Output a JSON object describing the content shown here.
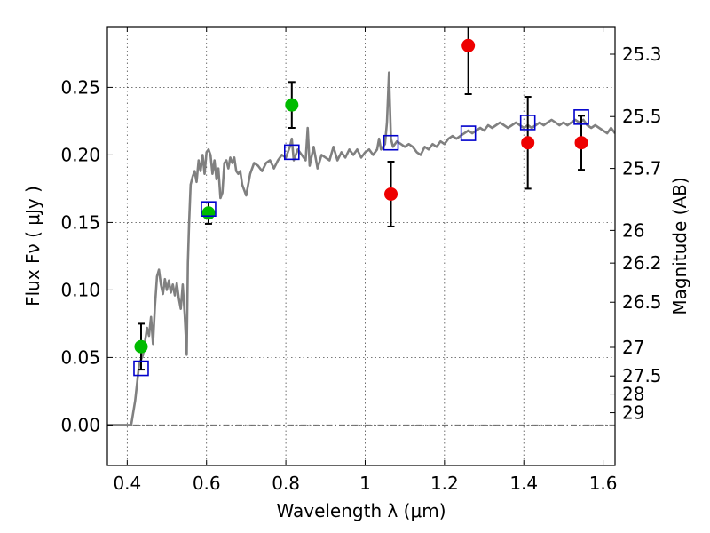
{
  "chart_data": {
    "type": "scatter",
    "xlabel": "Wavelength  λ (μm)",
    "ylabel": "Flux  Fν  ( μJy )",
    "y2label": "Magnitude (AB)",
    "xlim": [
      0.35,
      1.63
    ],
    "ylim": [
      -0.03,
      0.295
    ],
    "grid": true,
    "xticks": [
      {
        "value": 0.4,
        "label": "0.4"
      },
      {
        "value": 0.6,
        "label": "0.6"
      },
      {
        "value": 0.8,
        "label": "0.8"
      },
      {
        "value": 1.0,
        "label": "1"
      },
      {
        "value": 1.2,
        "label": "1.2"
      },
      {
        "value": 1.4,
        "label": "1.4"
      },
      {
        "value": 1.6,
        "label": "1.6"
      }
    ],
    "yticks": [
      {
        "value": 0.0,
        "label": "0.00"
      },
      {
        "value": 0.05,
        "label": "0.05"
      },
      {
        "value": 0.1,
        "label": "0.10"
      },
      {
        "value": 0.15,
        "label": "0.15"
      },
      {
        "value": 0.2,
        "label": "0.20"
      },
      {
        "value": 0.25,
        "label": "0.25"
      }
    ],
    "y2ticks": [
      {
        "label": "25.3",
        "flux": 0.2746
      },
      {
        "label": "25.5",
        "flux": 0.2284
      },
      {
        "label": "25.7",
        "flux": 0.19
      },
      {
        "label": "26",
        "flux": 0.1441
      },
      {
        "label": "26.2",
        "flux": 0.1199
      },
      {
        "label": "26.5",
        "flux": 0.0909
      },
      {
        "label": "27",
        "flux": 0.0575
      },
      {
        "label": "27.5",
        "flux": 0.0363
      },
      {
        "label": "28",
        "flux": 0.0229
      },
      {
        "label": "29",
        "flux": 0.0091
      }
    ],
    "model_spectrum": {
      "color": "#808080",
      "points": [
        [
          0.35,
          0.0
        ],
        [
          0.41,
          0.0
        ],
        [
          0.42,
          0.018
        ],
        [
          0.43,
          0.045
        ],
        [
          0.44,
          0.052
        ],
        [
          0.45,
          0.072
        ],
        [
          0.455,
          0.066
        ],
        [
          0.46,
          0.08
        ],
        [
          0.465,
          0.06
        ],
        [
          0.47,
          0.088
        ],
        [
          0.475,
          0.11
        ],
        [
          0.48,
          0.115
        ],
        [
          0.485,
          0.104
        ],
        [
          0.49,
          0.097
        ],
        [
          0.495,
          0.108
        ],
        [
          0.5,
          0.1
        ],
        [
          0.505,
          0.107
        ],
        [
          0.51,
          0.098
        ],
        [
          0.515,
          0.104
        ],
        [
          0.52,
          0.096
        ],
        [
          0.525,
          0.105
        ],
        [
          0.53,
          0.094
        ],
        [
          0.535,
          0.086
        ],
        [
          0.54,
          0.104
        ],
        [
          0.545,
          0.082
        ],
        [
          0.55,
          0.052
        ],
        [
          0.553,
          0.12
        ],
        [
          0.556,
          0.15
        ],
        [
          0.56,
          0.178
        ],
        [
          0.565,
          0.184
        ],
        [
          0.57,
          0.188
        ],
        [
          0.575,
          0.18
        ],
        [
          0.58,
          0.196
        ],
        [
          0.585,
          0.188
        ],
        [
          0.59,
          0.2
        ],
        [
          0.595,
          0.186
        ],
        [
          0.6,
          0.202
        ],
        [
          0.605,
          0.204
        ],
        [
          0.61,
          0.2
        ],
        [
          0.615,
          0.186
        ],
        [
          0.62,
          0.196
        ],
        [
          0.625,
          0.182
        ],
        [
          0.63,
          0.19
        ],
        [
          0.635,
          0.168
        ],
        [
          0.64,
          0.172
        ],
        [
          0.645,
          0.194
        ],
        [
          0.65,
          0.196
        ],
        [
          0.655,
          0.19
        ],
        [
          0.66,
          0.198
        ],
        [
          0.665,
          0.194
        ],
        [
          0.67,
          0.198
        ],
        [
          0.675,
          0.188
        ],
        [
          0.68,
          0.186
        ],
        [
          0.685,
          0.188
        ],
        [
          0.69,
          0.178
        ],
        [
          0.7,
          0.17
        ],
        [
          0.71,
          0.186
        ],
        [
          0.72,
          0.194
        ],
        [
          0.73,
          0.192
        ],
        [
          0.74,
          0.188
        ],
        [
          0.75,
          0.194
        ],
        [
          0.76,
          0.196
        ],
        [
          0.77,
          0.19
        ],
        [
          0.78,
          0.196
        ],
        [
          0.79,
          0.2
        ],
        [
          0.8,
          0.198
        ],
        [
          0.81,
          0.206
        ],
        [
          0.815,
          0.212
        ],
        [
          0.82,
          0.196
        ],
        [
          0.83,
          0.204
        ],
        [
          0.84,
          0.2
        ],
        [
          0.85,
          0.196
        ],
        [
          0.855,
          0.22
        ],
        [
          0.86,
          0.192
        ],
        [
          0.87,
          0.206
        ],
        [
          0.88,
          0.19
        ],
        [
          0.89,
          0.2
        ],
        [
          0.9,
          0.198
        ],
        [
          0.91,
          0.196
        ],
        [
          0.92,
          0.206
        ],
        [
          0.93,
          0.196
        ],
        [
          0.94,
          0.202
        ],
        [
          0.95,
          0.198
        ],
        [
          0.96,
          0.204
        ],
        [
          0.97,
          0.2
        ],
        [
          0.98,
          0.204
        ],
        [
          0.99,
          0.198
        ],
        [
          1.0,
          0.202
        ],
        [
          1.01,
          0.204
        ],
        [
          1.02,
          0.2
        ],
        [
          1.03,
          0.204
        ],
        [
          1.035,
          0.212
        ],
        [
          1.04,
          0.204
        ],
        [
          1.05,
          0.208
        ],
        [
          1.055,
          0.224
        ],
        [
          1.06,
          0.261
        ],
        [
          1.065,
          0.212
        ],
        [
          1.07,
          0.206
        ],
        [
          1.08,
          0.21
        ],
        [
          1.09,
          0.208
        ],
        [
          1.1,
          0.206
        ],
        [
          1.11,
          0.208
        ],
        [
          1.12,
          0.206
        ],
        [
          1.13,
          0.202
        ],
        [
          1.14,
          0.2
        ],
        [
          1.15,
          0.206
        ],
        [
          1.16,
          0.204
        ],
        [
          1.17,
          0.208
        ],
        [
          1.18,
          0.206
        ],
        [
          1.19,
          0.21
        ],
        [
          1.2,
          0.208
        ],
        [
          1.21,
          0.212
        ],
        [
          1.22,
          0.214
        ],
        [
          1.23,
          0.212
        ],
        [
          1.24,
          0.214
        ],
        [
          1.25,
          0.216
        ],
        [
          1.26,
          0.218
        ],
        [
          1.27,
          0.216
        ],
        [
          1.28,
          0.218
        ],
        [
          1.29,
          0.22
        ],
        [
          1.3,
          0.218
        ],
        [
          1.31,
          0.222
        ],
        [
          1.32,
          0.22
        ],
        [
          1.33,
          0.222
        ],
        [
          1.34,
          0.224
        ],
        [
          1.35,
          0.222
        ],
        [
          1.36,
          0.22
        ],
        [
          1.37,
          0.222
        ],
        [
          1.38,
          0.224
        ],
        [
          1.39,
          0.222
        ],
        [
          1.4,
          0.22
        ],
        [
          1.41,
          0.222
        ],
        [
          1.42,
          0.22
        ],
        [
          1.43,
          0.222
        ],
        [
          1.44,
          0.224
        ],
        [
          1.45,
          0.222
        ],
        [
          1.46,
          0.224
        ],
        [
          1.47,
          0.226
        ],
        [
          1.48,
          0.224
        ],
        [
          1.49,
          0.222
        ],
        [
          1.5,
          0.224
        ],
        [
          1.51,
          0.222
        ],
        [
          1.52,
          0.224
        ],
        [
          1.53,
          0.226
        ],
        [
          1.54,
          0.224
        ],
        [
          1.55,
          0.226
        ],
        [
          1.56,
          0.222
        ],
        [
          1.57,
          0.22
        ],
        [
          1.58,
          0.222
        ],
        [
          1.59,
          0.22
        ],
        [
          1.6,
          0.218
        ],
        [
          1.61,
          0.216
        ],
        [
          1.62,
          0.22
        ],
        [
          1.63,
          0.216
        ]
      ]
    },
    "model_photometry": {
      "marker": "open-square",
      "color": "#0000cc",
      "points": [
        {
          "x": 0.435,
          "y": 0.042
        },
        {
          "x": 0.605,
          "y": 0.16
        },
        {
          "x": 0.815,
          "y": 0.202
        },
        {
          "x": 1.065,
          "y": 0.209
        },
        {
          "x": 1.26,
          "y": 0.216
        },
        {
          "x": 1.41,
          "y": 0.224
        },
        {
          "x": 1.545,
          "y": 0.228
        }
      ]
    },
    "observed_optical": {
      "marker": "filled-circle",
      "color": "#00bb00",
      "points": [
        {
          "x": 0.435,
          "y": 0.058,
          "err": 0.017
        },
        {
          "x": 0.605,
          "y": 0.157,
          "err": 0.008
        },
        {
          "x": 0.815,
          "y": 0.237,
          "err": 0.017
        }
      ]
    },
    "observed_nir": {
      "marker": "filled-circle",
      "color": "#ee0000",
      "points": [
        {
          "x": 1.065,
          "y": 0.171,
          "err": 0.024
        },
        {
          "x": 1.26,
          "y": 0.281,
          "err": 0.036
        },
        {
          "x": 1.41,
          "y": 0.209,
          "err": 0.034
        },
        {
          "x": 1.545,
          "y": 0.209,
          "err": 0.02
        }
      ]
    },
    "zero_line": {
      "y": 0.0,
      "color": "#666666",
      "style": "dash-dot"
    }
  }
}
